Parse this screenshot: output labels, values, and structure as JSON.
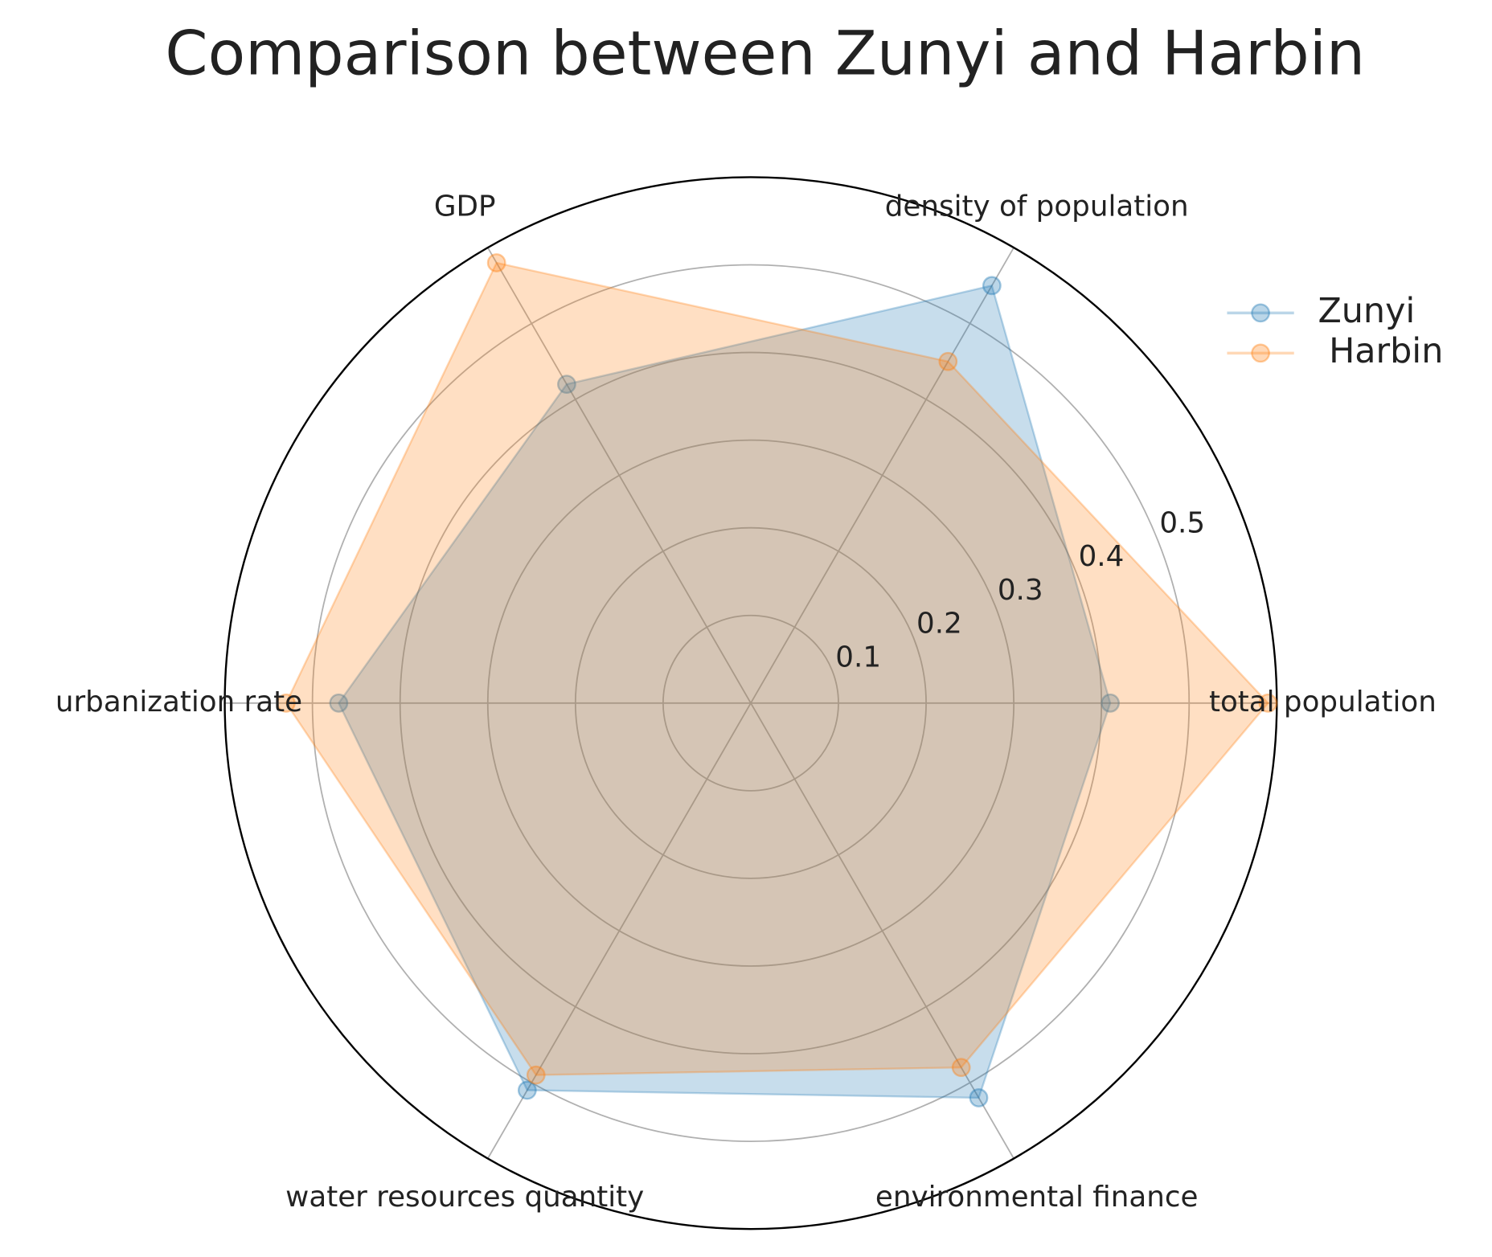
{
  "chart_data": {
    "type": "radar",
    "title": "Comparison between Zunyi and Harbin",
    "categories": [
      "total population",
      "density of population",
      "GDP",
      "urbanization rate",
      "water resources quantity",
      "environmental finance"
    ],
    "series": [
      {
        "name": "Zunyi",
        "color": "#1f77b4",
        "values": [
          0.41,
          0.55,
          0.42,
          0.47,
          0.51,
          0.52
        ]
      },
      {
        "name": " Harbin",
        "color": "#ff7f0e",
        "values": [
          0.59,
          0.45,
          0.58,
          0.53,
          0.49,
          0.48
        ]
      }
    ],
    "ylim": [
      0,
      0.6
    ],
    "yticks": [
      0.1,
      0.2,
      0.3,
      0.4,
      0.5
    ],
    "grid": true,
    "legend": "upper right"
  }
}
